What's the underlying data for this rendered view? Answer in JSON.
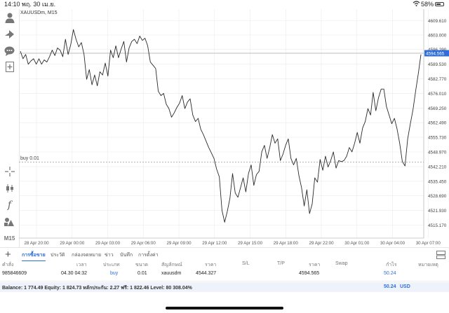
{
  "status_bar": {
    "time": "14:10",
    "date": "พฤ. 30 เม.ย.",
    "battery": "58%"
  },
  "chart": {
    "symbol": "XAUUSDm, M15",
    "current_price": "4594.565",
    "position_label": "buy 0.01",
    "y_ticks": [
      "4609.610",
      "4603.000",
      "4596.290",
      "4589.530",
      "4582.770",
      "4576.010",
      "4569.250",
      "4562.490",
      "4555.730",
      "4548.970",
      "4542.210",
      "4535.450",
      "4528.690",
      "4521.930",
      "4515.170"
    ],
    "x_ticks": [
      "28 Apr 20:00",
      "29 Apr 00:00",
      "29 Apr 03:00",
      "29 Apr 06:00",
      "29 Apr 09:00",
      "29 Apr 12:00",
      "29 Apr 15:00",
      "29 Apr 18:00",
      "29 Apr 22:00",
      "30 Apr 01:00",
      "30 Apr 04:00",
      "30 Apr 07:00"
    ]
  },
  "chart_data": {
    "type": "line",
    "title": "XAUUSDm, M15",
    "xlabel": "",
    "ylabel": "",
    "ylim": [
      4512,
      4613
    ],
    "x_range": [
      "28 Apr 20:00",
      "30 Apr 07:00"
    ],
    "hlines": {
      "bid": 4594.565,
      "position": 4544.327
    },
    "series": [
      {
        "values": [
          4595.5,
          4592,
          4594,
          4589.5,
          4591,
          4592,
          4589.5,
          4592,
          4589.5,
          4591.5,
          4590.5,
          4593,
          4596,
          4593.5,
          4597,
          4596,
          4593,
          4601,
          4594,
          4598.5,
          4605.5,
          4601,
          4597.5,
          4599.5,
          4594,
          4582.5,
          4587,
          4580,
          4584.5,
          4579.5,
          4586,
          4584.5,
          4590,
          4584,
          4596,
          4592.5,
          4598,
          4592.5,
          4596.5,
          4600,
          4590.5,
          4597,
          4600,
          4601,
          4599,
          4602.5,
          4600.5,
          4601.5,
          4598,
          4590.5,
          4589,
          4587.5,
          4577,
          4575,
          4576,
          4571,
          4569,
          4565,
          4567,
          4569.5,
          4571.5,
          4575,
          4569,
          4572,
          4573.5,
          4566,
          4563,
          4564.5,
          4559.5,
          4557,
          4554,
          4551,
          4548.5,
          4546,
          4541,
          4537.5,
          4522,
          4516.5,
          4521.5,
          4527.5,
          4539,
          4530,
          4528,
          4532.5,
          4537,
          4530.5,
          4539,
          4543,
          4533.5,
          4538.5,
          4540,
          4549,
          4552,
          4546,
          4551,
          4557,
          4553,
          4555,
          4545,
          4548,
          4552,
          4555,
          4546,
          4543,
          4546,
          4538,
          4532.5,
          4524,
          4531.5,
          4520.5,
          4525,
          4537,
          4535,
          4545.5,
          4540.5,
          4547,
          4542,
          4545,
          4549,
          4541.5,
          4545,
          4544.5,
          4545,
          4547,
          4551,
          4549,
          4553,
          4558,
          4553,
          4560,
          4563,
          4569,
          4566,
          4576.5,
          4568,
          4574,
          4578,
          4578,
          4570,
          4566,
          4562,
          4564.5,
          4559.5,
          4553,
          4544.5,
          4542.5,
          4555,
          4562,
          4568.5,
          4577,
          4585,
          4594
        ]
      }
    ]
  },
  "tabs": [
    "การซื้อขาย",
    "ประวัติ",
    "กล่องจดหมาย",
    "ข่าว",
    "บันทึก",
    "การตั้งค่า"
  ],
  "table": {
    "headers": [
      "คำสั่ง",
      "เวลา",
      "ประเภท",
      "ขนาด",
      "สัญลักษณ์",
      "ราคา",
      "S/L",
      "T/P",
      "ราคา",
      "Swap",
      "กำไร",
      "หมายเหตุ"
    ],
    "row": {
      "order": "985846609",
      "time": "04.30 04:32",
      "type": "buy",
      "volume": "0.01",
      "symbol": "xauusdm",
      "open_price": "4544.327",
      "sl": "",
      "tp": "",
      "price": "4594.565",
      "swap": "",
      "profit": "50.24",
      "comment": ""
    }
  },
  "balance_bar": {
    "text": "Balance: 1 774.49 Equity: 1 824.73 หลักประกัน: 2.27 ฟรี: 1 822.46 Level: 80 308.04%",
    "profit": "50.24",
    "currency": "USD"
  },
  "colors": {
    "accent": "#2f6ed8",
    "line": "#2a2a2a",
    "grid": "#ebebeb",
    "price_tag": "#2f6ed8"
  },
  "icons": [
    "person-icon",
    "share-icon",
    "chat-icon",
    "add-page-icon",
    "crosshair-icon",
    "candles-icon",
    "indicator-icon",
    "shapes-icon",
    "layout-icon"
  ]
}
